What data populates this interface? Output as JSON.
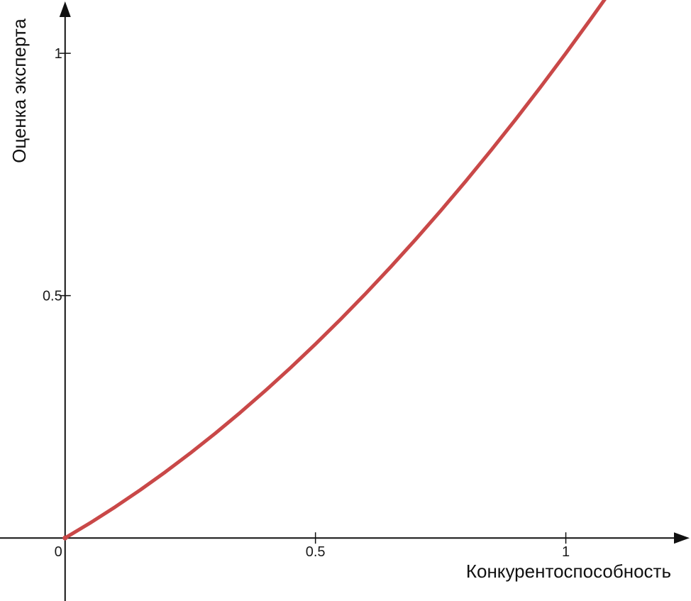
{
  "chart_data": {
    "type": "line",
    "title": "",
    "xlabel": "Конкурентоспособность",
    "ylabel": "Оценка эксперта",
    "xlim": [
      -0.13,
      1.25
    ],
    "ylim": [
      -0.13,
      1.11
    ],
    "origin_label": "0",
    "x_ticks": [
      {
        "value": 0.5,
        "label": "0.5"
      },
      {
        "value": 1,
        "label": "1"
      }
    ],
    "y_ticks": [
      {
        "value": 0.5,
        "label": "0.5"
      },
      {
        "value": 1,
        "label": "1"
      }
    ],
    "grid": false,
    "series": [
      {
        "color": "#c94848",
        "x": [
          0,
          0.05,
          0.1,
          0.15,
          0.2,
          0.25,
          0.3,
          0.35,
          0.4,
          0.45,
          0.5,
          0.55,
          0.6,
          0.65,
          0.7,
          0.75,
          0.8,
          0.85,
          0.9,
          0.95,
          1.0,
          1.05,
          1.09
        ],
        "values": [
          0,
          0.037,
          0.075,
          0.114,
          0.155,
          0.197,
          0.241,
          0.287,
          0.335,
          0.385,
          0.438,
          0.492,
          0.549,
          0.608,
          0.669,
          0.733,
          0.8,
          0.869,
          0.94,
          1.014,
          1.0,
          1.08,
          1.12
        ]
      }
    ],
    "axis_color": "#111111"
  }
}
